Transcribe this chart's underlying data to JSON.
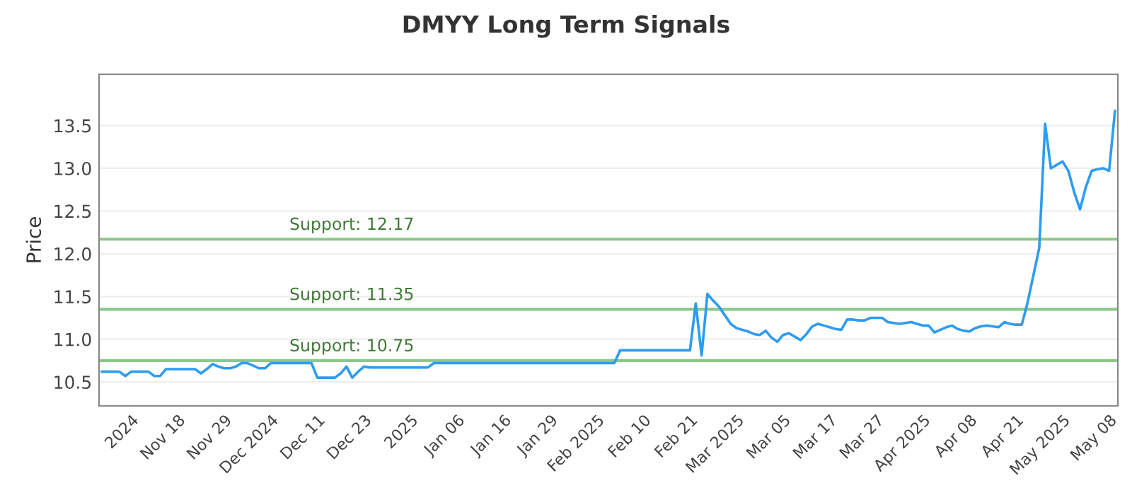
{
  "chart_data": {
    "type": "line",
    "title": "DMYY Long Term Signals",
    "ylabel": "Price",
    "categories": [
      null,
      null,
      null,
      null,
      null,
      "2024",
      null,
      null,
      null,
      null,
      null,
      null,
      null,
      "Nov 18",
      null,
      null,
      null,
      null,
      null,
      null,
      null,
      "Nov 29",
      null,
      null,
      null,
      null,
      null,
      null,
      null,
      "Dec 2024",
      null,
      null,
      null,
      null,
      null,
      null,
      null,
      "Dec 11",
      null,
      null,
      null,
      null,
      null,
      null,
      null,
      "Dec 23",
      null,
      null,
      null,
      null,
      null,
      null,
      null,
      "2025",
      null,
      null,
      null,
      null,
      null,
      null,
      null,
      "Jan 06",
      null,
      null,
      null,
      null,
      null,
      null,
      null,
      "Jan 16",
      null,
      null,
      null,
      null,
      null,
      null,
      null,
      "Jan 29",
      null,
      null,
      null,
      null,
      null,
      null,
      null,
      "Feb 2025",
      null,
      null,
      null,
      null,
      null,
      null,
      null,
      "Feb 10",
      null,
      null,
      null,
      null,
      null,
      null,
      null,
      "Feb 21",
      null,
      null,
      null,
      null,
      null,
      null,
      null,
      "Mar 2025",
      null,
      null,
      null,
      null,
      null,
      null,
      null,
      "Mar 05",
      null,
      null,
      null,
      null,
      null,
      null,
      null,
      "Mar 17",
      null,
      null,
      null,
      null,
      null,
      null,
      null,
      "Mar 27",
      null,
      null,
      null,
      null,
      null,
      null,
      null,
      "Apr 2025",
      null,
      null,
      null,
      null,
      null,
      null,
      null,
      "Apr 08",
      null,
      null,
      null,
      null,
      null,
      null,
      null,
      "Apr 21",
      null,
      null,
      null,
      null,
      null,
      null,
      null,
      "May 2025",
      null,
      null,
      null,
      null,
      null,
      null,
      null,
      "May 08",
      null
    ],
    "series": [
      {
        "color": "#2e9cf0",
        "values": [
          10.62,
          10.62,
          10.62,
          10.62,
          10.57,
          10.62,
          10.62,
          10.62,
          10.62,
          10.57,
          10.57,
          10.65,
          10.65,
          10.65,
          10.65,
          10.65,
          10.65,
          10.6,
          10.65,
          10.71,
          10.68,
          10.66,
          10.66,
          10.68,
          10.72,
          10.72,
          10.69,
          10.66,
          10.66,
          10.72,
          10.72,
          10.72,
          10.72,
          10.72,
          10.72,
          10.72,
          10.72,
          10.55,
          10.55,
          10.55,
          10.55,
          10.6,
          10.68,
          10.55,
          10.62,
          10.68,
          10.67,
          10.67,
          10.67,
          10.67,
          10.67,
          10.67,
          10.67,
          10.67,
          10.67,
          10.67,
          10.67,
          10.72,
          10.72,
          10.72,
          10.72,
          10.72,
          10.72,
          10.72,
          10.72,
          10.72,
          10.72,
          10.72,
          10.72,
          10.72,
          10.72,
          10.72,
          10.72,
          10.72,
          10.72,
          10.72,
          10.72,
          10.72,
          10.72,
          10.72,
          10.72,
          10.72,
          10.72,
          10.72,
          10.72,
          10.72,
          10.72,
          10.72,
          10.72,
          10.87,
          10.87,
          10.87,
          10.87,
          10.87,
          10.87,
          10.87,
          10.87,
          10.87,
          10.87,
          10.87,
          10.87,
          10.87,
          11.42,
          10.81,
          11.53,
          11.45,
          11.38,
          11.28,
          11.18,
          11.13,
          11.11,
          11.09,
          11.06,
          11.05,
          11.1,
          11.02,
          10.97,
          11.05,
          11.07,
          11.03,
          10.99,
          11.06,
          11.15,
          11.18,
          11.16,
          11.14,
          11.12,
          11.11,
          11.23,
          11.23,
          11.22,
          11.22,
          11.25,
          11.25,
          11.25,
          11.2,
          11.19,
          11.18,
          11.19,
          11.2,
          11.18,
          11.16,
          11.16,
          11.08,
          11.11,
          11.14,
          11.16,
          11.12,
          11.1,
          11.09,
          11.13,
          11.15,
          11.16,
          11.15,
          11.14,
          11.2,
          11.18,
          11.17,
          11.17,
          11.43,
          11.75,
          12.07,
          13.52,
          13.0,
          13.04,
          13.08,
          12.97,
          12.72,
          12.52,
          12.78,
          12.97,
          12.99,
          13.0,
          12.97,
          13.67
        ]
      }
    ],
    "ylim": [
      10.22,
      14.1
    ],
    "yticks": [
      10.5,
      {
        "value": 11,
        "label": "11.0"
      },
      11.5,
      {
        "value": 12,
        "label": "12.0"
      },
      12.5,
      {
        "value": 13,
        "label": "13.0"
      },
      13.5
    ],
    "grid": "y",
    "marker": "none",
    "line_style": "solid",
    "ref_lines": [
      {
        "axis": "y",
        "value": 12.17,
        "label": "Support: 12.17",
        "color": "#8cc78a"
      },
      {
        "axis": "y",
        "value": 11.35,
        "label": "Support: 11.35",
        "color": "#8cc78a"
      },
      {
        "axis": "y",
        "value": 10.75,
        "label": "Support: 10.75",
        "color": "#8cc78a"
      }
    ]
  }
}
